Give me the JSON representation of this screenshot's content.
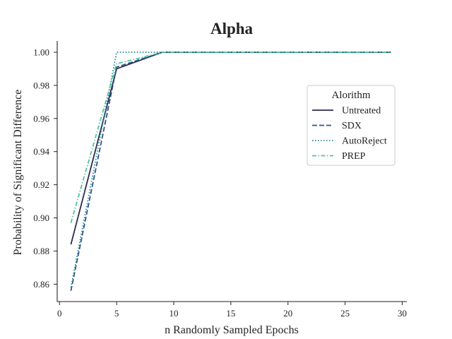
{
  "chart_data": {
    "type": "line",
    "title": "Alpha",
    "xlabel": "n Randomly Sampled Epochs",
    "ylabel": "Probability of Significant Difference",
    "xlim": [
      -0.2,
      30.4
    ],
    "ylim": [
      0.8495,
      1.0068
    ],
    "xticks": [
      0,
      5,
      10,
      15,
      20,
      25,
      30
    ],
    "xtick_labels": [
      "0",
      "5",
      "10",
      "15",
      "20",
      "25",
      "30"
    ],
    "yticks": [
      0.86,
      0.88,
      0.9,
      0.92,
      0.94,
      0.96,
      0.98,
      1.0
    ],
    "ytick_labels": [
      "0.86",
      "0.88",
      "0.90",
      "0.92",
      "0.94",
      "0.96",
      "0.98",
      "1.00"
    ],
    "grid": false,
    "legend": {
      "title": "Alorithm",
      "position": "right"
    },
    "x": [
      1,
      5,
      9,
      13,
      17,
      21,
      25,
      29
    ],
    "series": [
      {
        "name": "Untreated",
        "values": [
          0.884,
          0.99,
          1.0,
          1.0,
          1.0,
          1.0,
          1.0,
          1.0
        ],
        "color": "#2b2a4c",
        "dash": "solid"
      },
      {
        "name": "SDX",
        "values": [
          0.856,
          0.991,
          1.0,
          1.0,
          1.0,
          1.0,
          1.0,
          1.0
        ],
        "color": "#2f5589",
        "dash": "dashed"
      },
      {
        "name": "AutoReject",
        "values": [
          0.858,
          1.0,
          1.0,
          1.0,
          1.0,
          1.0,
          1.0,
          1.0
        ],
        "color": "#2a8f9b",
        "dash": "dotted"
      },
      {
        "name": "PREP",
        "values": [
          0.897,
          0.993,
          1.0,
          1.0,
          1.0,
          1.0,
          1.0,
          1.0
        ],
        "color": "#52c39c",
        "dash": "dashdot"
      }
    ]
  }
}
